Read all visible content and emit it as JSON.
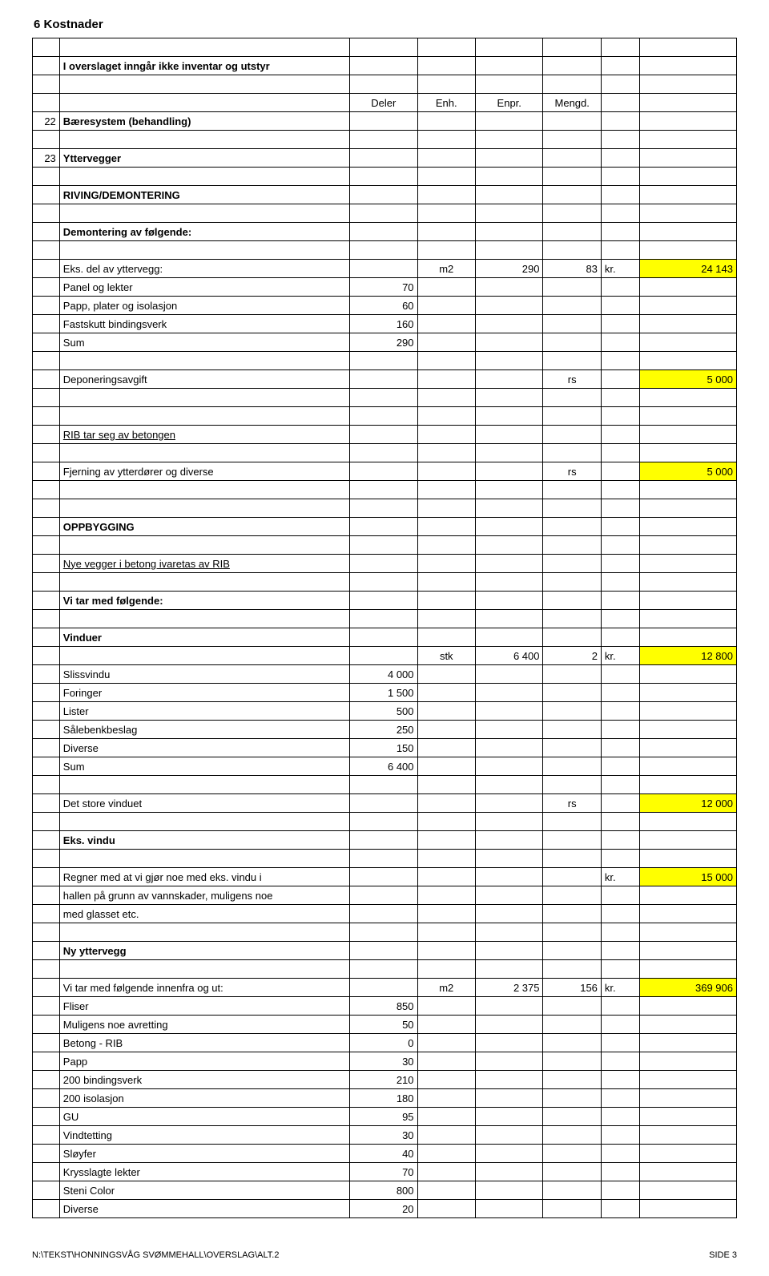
{
  "title": "6  Kostnader",
  "intro": "I overslaget inngår ikke inventar og utstyr",
  "headers": {
    "c1": "Deler",
    "c2": "Enh.",
    "c3": "Enpr.",
    "c4": "Mengd."
  },
  "sec22": {
    "num": "22",
    "label": "Bæresystem (behandling)"
  },
  "sec23": {
    "num": "23",
    "label": "Yttervegger"
  },
  "riving": {
    "heading": "RIVING/DEMONTERING",
    "sub": "Demontering av følgende:"
  },
  "eks": {
    "label": "Eks. del av yttervegg:",
    "unit": "m2",
    "qty": "290",
    "mult": "83",
    "kr": "kr.",
    "total": "24 143",
    "items": [
      {
        "name": "Panel og lekter",
        "val": "70"
      },
      {
        "name": "Papp, plater og isolasjon",
        "val": "60"
      },
      {
        "name": "Fastskutt bindingsverk",
        "val": "160"
      },
      {
        "name": "Sum",
        "val": "290"
      }
    ]
  },
  "dep": {
    "label": "Deponeringsavgift",
    "unit": "rs",
    "total": "5 000"
  },
  "rib": {
    "label": "RIB tar seg av betongen"
  },
  "fjern": {
    "label": "Fjerning av ytterdører og diverse",
    "unit": "rs",
    "total": "5 000"
  },
  "opp": {
    "heading": "OPPBYGGING",
    "sub1": "Nye vegger i betong ivaretas av RIB",
    "sub2": "Vi tar med følgende:"
  },
  "vinduer": {
    "heading": "Vinduer",
    "unit": "stk",
    "price": "6 400",
    "qty": "2",
    "kr": "kr.",
    "total": "12 800",
    "items": [
      {
        "name": "Slissvindu",
        "val": "4 000"
      },
      {
        "name": "Foringer",
        "val": "1 500"
      },
      {
        "name": "Lister",
        "val": "500"
      },
      {
        "name": "Sålebenkbeslag",
        "val": "250"
      },
      {
        "name": "Diverse",
        "val": "150"
      },
      {
        "name": "Sum",
        "val": "6 400"
      }
    ]
  },
  "store": {
    "label": "Det store vinduet",
    "unit": "rs",
    "total": "12 000"
  },
  "eksvindu": {
    "heading": "Eks. vindu"
  },
  "regner": {
    "l1": "Regner med at vi gjør noe med eks. vindu i",
    "l2": "hallen på grunn av vannskader, muligens noe",
    "l3": "med glasset etc.",
    "kr": "kr.",
    "total": "15 000"
  },
  "ny": {
    "heading": "Ny yttervegg",
    "label": "Vi tar med følgende innenfra og ut:",
    "unit": "m2",
    "price": "2 375",
    "qty": "156",
    "kr": "kr.",
    "total": "369 906",
    "items": [
      {
        "name": "Fliser",
        "val": "850"
      },
      {
        "name": "Muligens noe avretting",
        "val": "50"
      },
      {
        "name": "Betong - RIB",
        "val": "0"
      },
      {
        "name": "Papp",
        "val": "30"
      },
      {
        "name": "200 bindingsverk",
        "val": "210"
      },
      {
        "name": "200 isolasjon",
        "val": "180"
      },
      {
        "name": "GU",
        "val": "95"
      },
      {
        "name": "Vindtetting",
        "val": "30"
      },
      {
        "name": "Sløyfer",
        "val": "40"
      },
      {
        "name": "Krysslagte lekter",
        "val": "70"
      },
      {
        "name": "Steni Color",
        "val": "800"
      },
      {
        "name": "Diverse",
        "val": "20"
      }
    ]
  },
  "footer": {
    "path": "N:\\TEKST\\HONNINGSVÅG SVØMMEHALL\\OVERSLAG\\ALT.2",
    "page": "SIDE 3"
  },
  "colors": {
    "highlight": "#ffff00"
  }
}
